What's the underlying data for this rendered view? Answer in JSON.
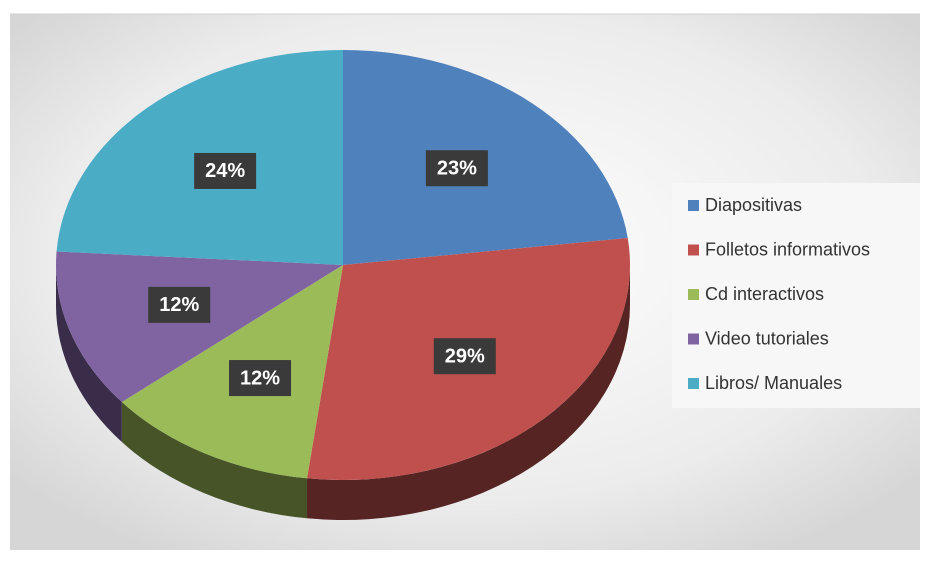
{
  "chart_data": {
    "type": "pie",
    "categories": [
      "Diapositivas",
      "Folletos informativos",
      "Cd interactivos",
      "Video tutoriales",
      "Libros/ Manuales"
    ],
    "values": [
      23,
      29,
      12,
      12,
      24
    ],
    "value_labels": [
      "23%",
      "29%",
      "12%",
      "12%",
      "24%"
    ],
    "colors": [
      "#4f81bd",
      "#c0504d",
      "#9bbb59",
      "#8064a2",
      "#4bacc6"
    ],
    "legend": "right"
  }
}
